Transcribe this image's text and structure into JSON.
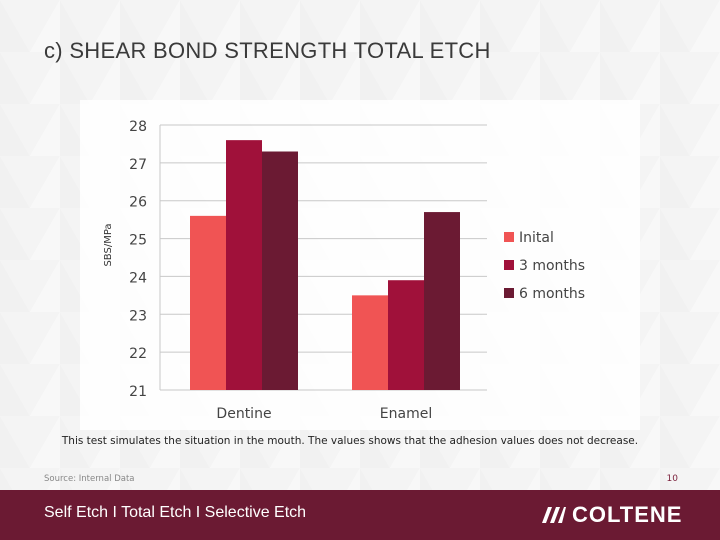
{
  "slide": {
    "title": "c) SHEAR BOND STRENGTH TOTAL ETCH",
    "caption": "This test simulates the situation in the mouth. The values shows that the adhesion values does not decrease.",
    "source": "Source: Internal Data",
    "page_number": "10"
  },
  "footer": {
    "nav_text": "Self Etch  I  Total Etch  I  Selective Etch",
    "logo_text": "COLTENE"
  },
  "colors": {
    "footer_bg": "#6b1a33",
    "series": [
      "#f05454",
      "#a0113a",
      "#6b1a33"
    ]
  },
  "chart_data": {
    "type": "bar",
    "categories": [
      "Dentine",
      "Enamel"
    ],
    "series": [
      {
        "name": "Inital",
        "values": [
          25.6,
          23.5
        ]
      },
      {
        "name": "3 months",
        "values": [
          27.6,
          23.9
        ]
      },
      {
        "name": "6 months",
        "values": [
          27.3,
          25.7
        ]
      }
    ],
    "ylabel": "SBS/MPa",
    "ylim": [
      21,
      28
    ],
    "yticks": [
      21,
      22,
      23,
      24,
      25,
      26,
      27,
      28
    ],
    "grid": true,
    "legend_position": "right"
  }
}
